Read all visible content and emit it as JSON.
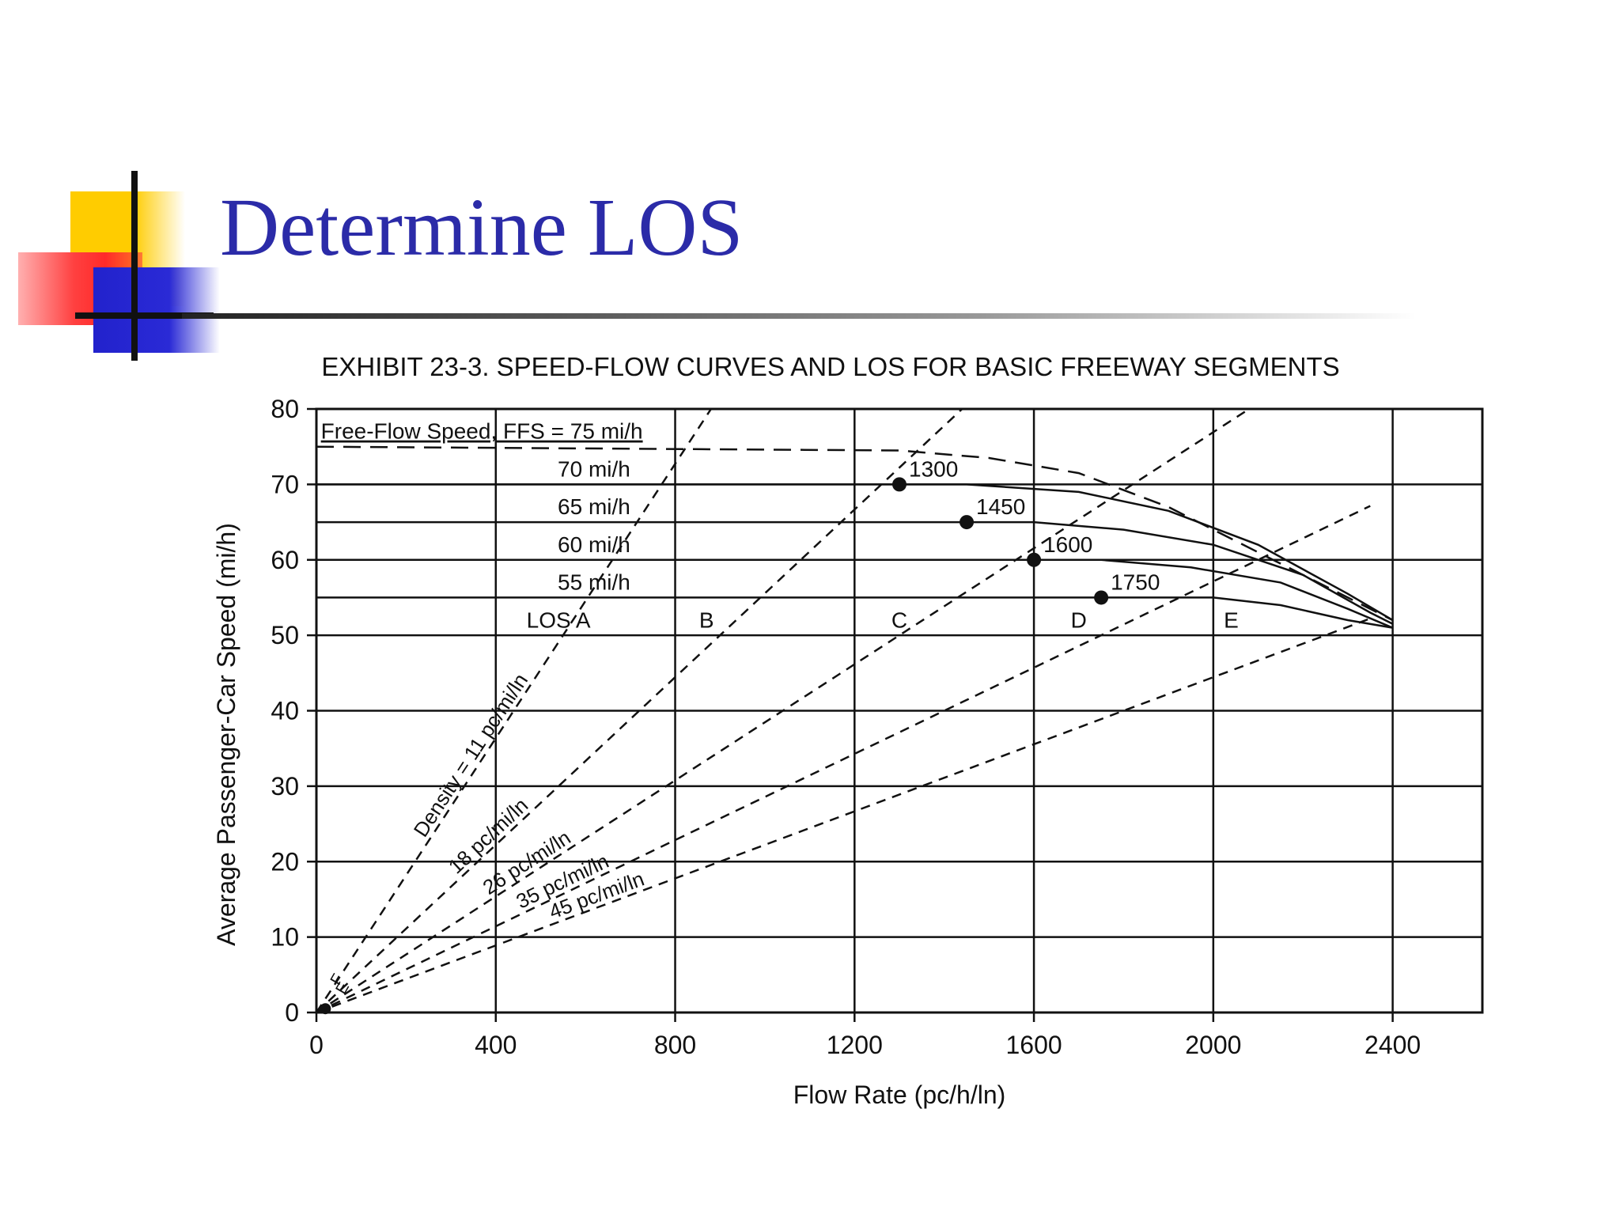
{
  "slide": {
    "title": "Determine LOS"
  },
  "colors": {
    "title": "#2b2ba8",
    "deco_yellow": "#ffcc00",
    "deco_red": "#ff2a2a",
    "deco_blue": "#2222cc"
  },
  "chart_data": {
    "type": "line",
    "title": "EXHIBIT 23-3.  SPEED-FLOW CURVES AND LOS FOR BASIC FREEWAY SEGMENTS",
    "xlabel": "Flow Rate (pc/h/ln)",
    "ylabel": "Average Passenger-Car Speed (mi/h)",
    "xlim": [
      0,
      2600
    ],
    "ylim": [
      0,
      80
    ],
    "x_ticks": [
      0,
      400,
      800,
      1200,
      1600,
      2000,
      2400
    ],
    "y_ticks": [
      0,
      10,
      20,
      30,
      40,
      50,
      60,
      70,
      80
    ],
    "grid": true,
    "ffs_curves": [
      {
        "label": "Free-Flow Speed, FFS = 75 mi/h",
        "ffs": 75,
        "points": [
          [
            0,
            75
          ],
          [
            1300,
            74.5
          ],
          [
            1500,
            73.5
          ],
          [
            1700,
            71.5
          ],
          [
            1900,
            67
          ],
          [
            2100,
            61
          ],
          [
            2300,
            55
          ],
          [
            2400,
            52
          ]
        ]
      },
      {
        "label": "70 mi/h",
        "ffs": 70,
        "points": [
          [
            0,
            70
          ],
          [
            1450,
            70
          ],
          [
            1700,
            69
          ],
          [
            1900,
            66.5
          ],
          [
            2100,
            62
          ],
          [
            2300,
            55.5
          ],
          [
            2400,
            52
          ]
        ]
      },
      {
        "label": "65 mi/h",
        "ffs": 65,
        "points": [
          [
            0,
            65
          ],
          [
            1600,
            65
          ],
          [
            1800,
            64
          ],
          [
            2000,
            62
          ],
          [
            2200,
            58
          ],
          [
            2350,
            53
          ],
          [
            2400,
            51.5
          ]
        ]
      },
      {
        "label": "60 mi/h",
        "ffs": 60,
        "points": [
          [
            0,
            60
          ],
          [
            1750,
            60
          ],
          [
            1950,
            59
          ],
          [
            2150,
            57
          ],
          [
            2300,
            53.5
          ],
          [
            2400,
            51
          ]
        ]
      },
      {
        "label": "55 mi/h",
        "ffs": 55,
        "points": [
          [
            0,
            55
          ],
          [
            2000,
            55
          ],
          [
            2150,
            54
          ],
          [
            2300,
            52
          ],
          [
            2400,
            51
          ]
        ]
      }
    ],
    "breakpoints": [
      {
        "label": "1300",
        "flow": 1300,
        "speed": 70
      },
      {
        "label": "1450",
        "flow": 1450,
        "speed": 65
      },
      {
        "label": "1600",
        "flow": 1600,
        "speed": 60
      },
      {
        "label": "1750",
        "flow": 1750,
        "speed": 55
      }
    ],
    "density_lines": [
      {
        "label": "Density = 11 pc/mi/ln",
        "density": 11
      },
      {
        "label": "18 pc/mi/ln",
        "density": 18
      },
      {
        "label": "26 pc/mi/ln",
        "density": 26
      },
      {
        "label": "35 pc/mi/ln",
        "density": 35
      },
      {
        "label": "45 pc/mi/ln",
        "density": 45
      }
    ],
    "los_regions": [
      {
        "label": "LOS A",
        "flow": 540,
        "speed": 51
      },
      {
        "label": "B",
        "flow": 870,
        "speed": 51
      },
      {
        "label": "C",
        "flow": 1300,
        "speed": 51
      },
      {
        "label": "D",
        "flow": 1700,
        "speed": 51
      },
      {
        "label": "E",
        "flow": 2040,
        "speed": 51
      }
    ],
    "origin_labels": [
      "F",
      "E"
    ]
  }
}
